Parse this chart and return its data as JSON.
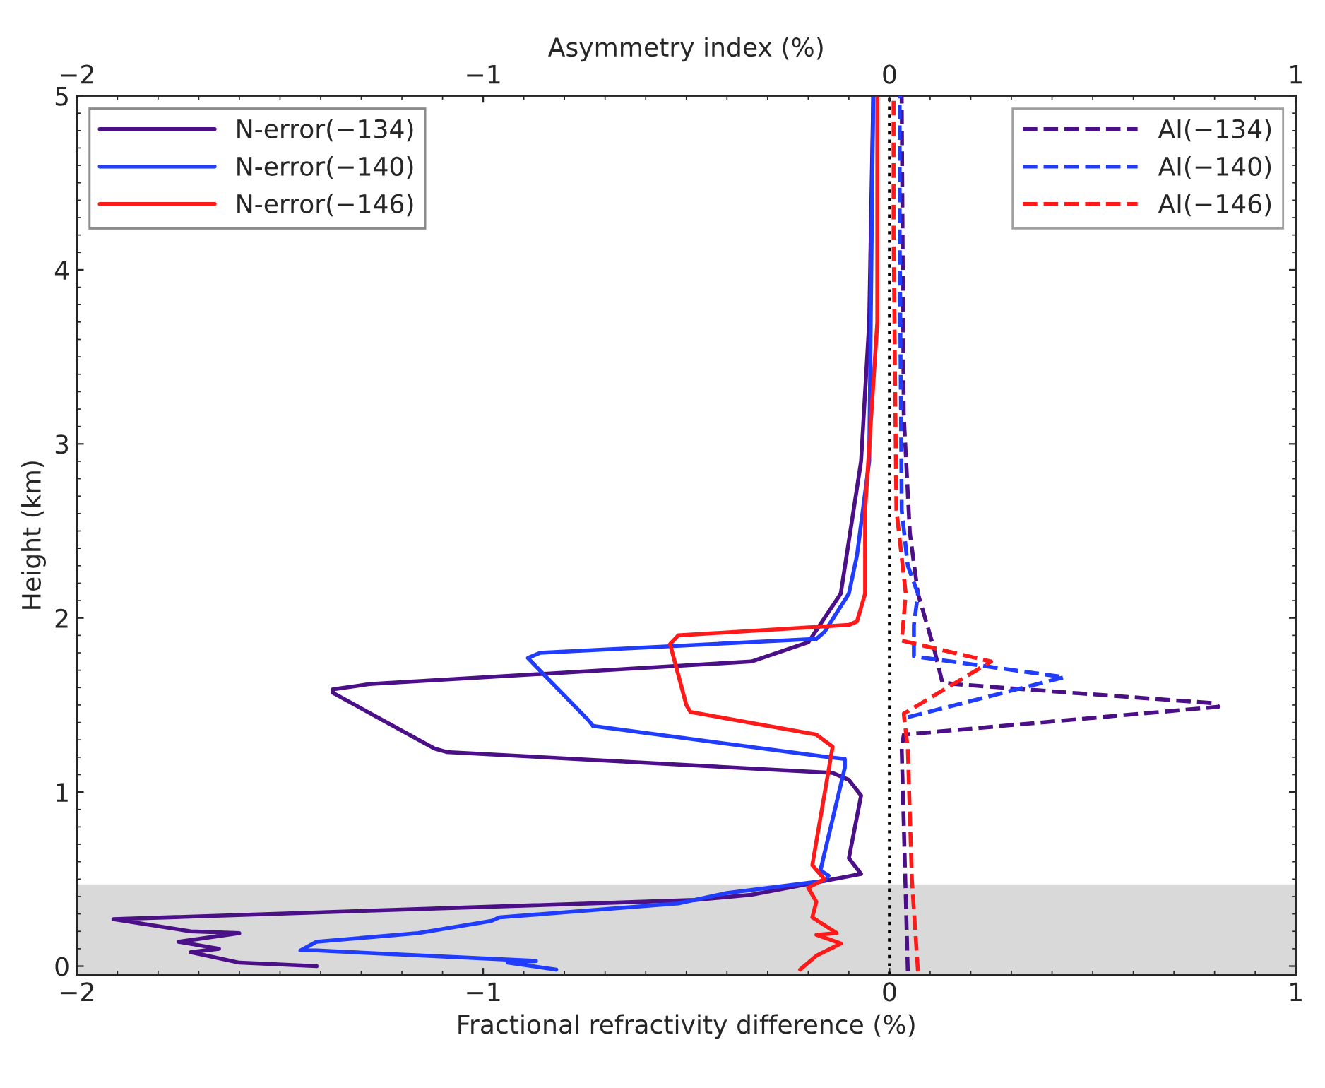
{
  "chart_data": {
    "type": "line",
    "xlabel": "Fractional refractivity difference (%)",
    "ylabel": "Height (km)",
    "x2label": "Asymmetry index (%)",
    "xlim": [
      -2,
      1
    ],
    "xticks": [
      {
        "value": -2,
        "label": "−2"
      },
      {
        "value": -1,
        "label": "−1"
      },
      0,
      1
    ],
    "x2lim": [
      -2,
      1
    ],
    "x2ticks": [
      {
        "value": -2,
        "label": "−2"
      },
      {
        "value": -1,
        "label": "−1"
      },
      0,
      1
    ],
    "ylim": [
      -0.05,
      5
    ],
    "yticks": [
      0,
      1,
      2,
      3,
      4,
      5
    ],
    "legend": "top left",
    "grid": false,
    "bands": [
      {
        "axis": "y",
        "from": -0.05,
        "to": 0.47,
        "color": "#d9d9d9"
      }
    ],
    "ref_lines": [
      {
        "axis": "x",
        "value": 0,
        "color": "#000000",
        "line_style": "dotted"
      }
    ],
    "series": [
      {
        "name": "N-error(−134)",
        "color": "#4b0f87",
        "line_style": "solid",
        "x": [
          -1.41,
          -1.6,
          -1.72,
          -1.65,
          -1.75,
          -1.6,
          -1.72,
          -1.91,
          -0.48,
          -0.34,
          -0.07,
          -0.1,
          -0.07,
          -0.1,
          -0.14,
          -1.09,
          -1.12,
          -1.37,
          -1.37,
          -1.28,
          -0.34,
          -0.2,
          -0.12,
          -0.07,
          -0.05,
          -0.04
        ],
        "values": [
          0.0,
          0.02,
          0.08,
          0.1,
          0.14,
          0.19,
          0.2,
          0.27,
          0.38,
          0.41,
          0.53,
          0.62,
          0.98,
          1.07,
          1.11,
          1.23,
          1.25,
          1.57,
          1.59,
          1.62,
          1.75,
          1.86,
          2.14,
          2.9,
          3.7,
          5.0
        ]
      },
      {
        "name": "N-error(−140)",
        "color": "#1f3cff",
        "line_style": "solid",
        "x": [
          -0.82,
          -0.94,
          -0.87,
          -1.41,
          -1.45,
          -1.41,
          -1.16,
          -0.98,
          -0.96,
          -0.52,
          -0.4,
          -0.16,
          -0.15,
          -0.17,
          -0.11,
          -0.11,
          -0.15,
          -0.73,
          -0.74,
          -0.89,
          -0.86,
          -0.18,
          -0.16,
          -0.1,
          -0.08,
          -0.05,
          -0.04
        ],
        "values": [
          -0.02,
          0.02,
          0.03,
          0.09,
          0.09,
          0.14,
          0.19,
          0.26,
          0.28,
          0.36,
          0.42,
          0.49,
          0.52,
          0.55,
          1.14,
          1.19,
          1.2,
          1.38,
          1.41,
          1.77,
          1.8,
          1.88,
          1.92,
          2.14,
          2.36,
          2.9,
          5.0
        ]
      },
      {
        "name": "N-error(−146)",
        "color": "#ff1a1a",
        "line_style": "solid",
        "x": [
          -0.22,
          -0.18,
          -0.12,
          -0.18,
          -0.13,
          -0.19,
          -0.18,
          -0.2,
          -0.16,
          -0.19,
          -0.14,
          -0.18,
          -0.49,
          -0.5,
          -0.54,
          -0.52,
          -0.1,
          -0.08,
          -0.06,
          -0.06,
          -0.03,
          -0.03
        ],
        "values": [
          -0.02,
          0.06,
          0.13,
          0.18,
          0.19,
          0.28,
          0.37,
          0.45,
          0.5,
          0.58,
          1.26,
          1.33,
          1.46,
          1.5,
          1.85,
          1.9,
          1.96,
          1.98,
          2.14,
          2.62,
          3.7,
          5.0
        ]
      },
      {
        "name": "AI(−134)",
        "color": "#4b0f87",
        "line_style": "dashed",
        "axis": "x2",
        "x": [
          0.045,
          0.03,
          0.035,
          0.81,
          0.8,
          0.16,
          0.13,
          0.11,
          0.07,
          0.05,
          0.035,
          0.03
        ],
        "values": [
          -0.03,
          1.25,
          1.33,
          1.49,
          1.51,
          1.62,
          1.63,
          1.82,
          2.14,
          2.49,
          3.17,
          5.0
        ]
      },
      {
        "name": "AI(−140)",
        "color": "#1f3cff",
        "line_style": "dashed",
        "axis": "x2",
        "x": [
          0.045,
          0.43,
          0.06,
          0.06,
          0.07,
          0.045,
          0.03,
          0.025,
          0.025
        ],
        "values": [
          1.43,
          1.66,
          1.78,
          1.96,
          2.14,
          2.3,
          2.62,
          4.2,
          5.0
        ]
      },
      {
        "name": "AI(−146)",
        "color": "#ff1a1a",
        "line_style": "dashed",
        "axis": "x2",
        "x": [
          0.07,
          0.055,
          0.045,
          0.035,
          0.25,
          0.03,
          0.035,
          0.04,
          0.017,
          0.01,
          0.01
        ],
        "values": [
          -0.03,
          0.5,
          1.25,
          1.45,
          1.75,
          1.87,
          2.0,
          2.14,
          2.62,
          4.2,
          5.0
        ]
      }
    ]
  }
}
